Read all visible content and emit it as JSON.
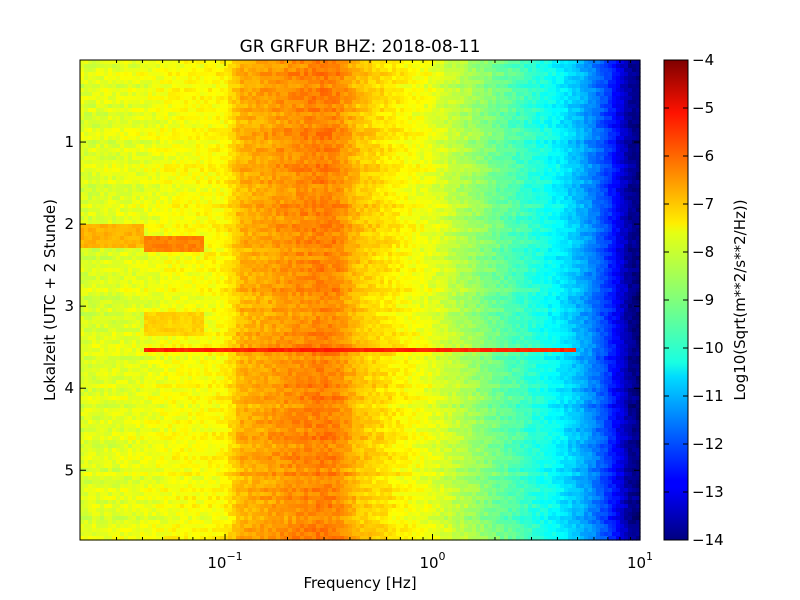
{
  "chart_data": {
    "type": "heatmap",
    "title": "GR GRFUR BHZ: 2018-08-11",
    "xlabel": "Frequency [Hz]",
    "ylabel": "Lokalzeit (UTC + 2 Stunde)",
    "x_scale": "log",
    "xlim": [
      0.02,
      10
    ],
    "ylim": [
      5.85,
      0
    ],
    "x_ticks": [
      {
        "value": 0.1,
        "base": "10",
        "exp": "−1"
      },
      {
        "value": 1,
        "base": "10",
        "exp": "0"
      },
      {
        "value": 10,
        "base": "10",
        "exp": "1"
      }
    ],
    "y_ticks": [
      {
        "value": 1,
        "label": "1"
      },
      {
        "value": 2,
        "label": "2"
      },
      {
        "value": 3,
        "label": "3"
      },
      {
        "value": 4,
        "label": "4"
      },
      {
        "value": 5,
        "label": "5"
      }
    ],
    "colorbar": {
      "label": "Log10(Sqrt(m**2/s**2/Hz))",
      "range": [
        -14,
        -4
      ],
      "colormap": "jet",
      "ticks": [
        {
          "value": -4,
          "label": "−4"
        },
        {
          "value": -5,
          "label": "−5"
        },
        {
          "value": -6,
          "label": "−6"
        },
        {
          "value": -7,
          "label": "−7"
        },
        {
          "value": -8,
          "label": "−8"
        },
        {
          "value": -9,
          "label": "−9"
        },
        {
          "value": -10,
          "label": "−10"
        },
        {
          "value": -11,
          "label": "−11"
        },
        {
          "value": -12,
          "label": "−12"
        },
        {
          "value": -13,
          "label": "−13"
        },
        {
          "value": -14,
          "label": "−14"
        }
      ]
    },
    "spectrum_profile": {
      "frequency_hz": [
        0.02,
        0.04,
        0.06,
        0.08,
        0.1,
        0.12,
        0.15,
        0.2,
        0.25,
        0.3,
        0.35,
        0.45,
        0.6,
        0.8,
        1.0,
        1.5,
        2.0,
        3.0,
        4.0,
        5.0,
        6.0,
        7.0,
        8.0,
        9.0,
        10.0
      ],
      "log_psd": [
        -8.1,
        -8.0,
        -7.8,
        -7.8,
        -7.7,
        -7.0,
        -6.9,
        -6.7,
        -6.6,
        -6.5,
        -6.6,
        -7.2,
        -7.5,
        -7.8,
        -8.0,
        -8.6,
        -9.1,
        -9.8,
        -10.3,
        -10.9,
        -11.5,
        -12.2,
        -13.0,
        -13.8,
        -14.0
      ]
    },
    "features": [
      {
        "time_h": [
          2.0,
          2.3
        ],
        "frequency_hz": [
          0.02,
          0.04
        ],
        "log_psd": -7.0
      },
      {
        "time_h": [
          2.15,
          2.35
        ],
        "frequency_hz": [
          0.04,
          0.08
        ],
        "log_psd": -6.5
      },
      {
        "time_h": [
          2.35,
          2.45
        ],
        "frequency_hz": [
          0.08,
          0.09
        ],
        "log_psd": -7.5
      },
      {
        "time_h": [
          3.05,
          3.35
        ],
        "frequency_hz": [
          0.04,
          0.08
        ],
        "log_psd": -7.3
      },
      {
        "time_h": [
          3.5,
          3.56
        ],
        "frequency_hz": [
          0.04,
          5.0
        ],
        "log_psd": -5.6
      }
    ],
    "grid": false
  }
}
